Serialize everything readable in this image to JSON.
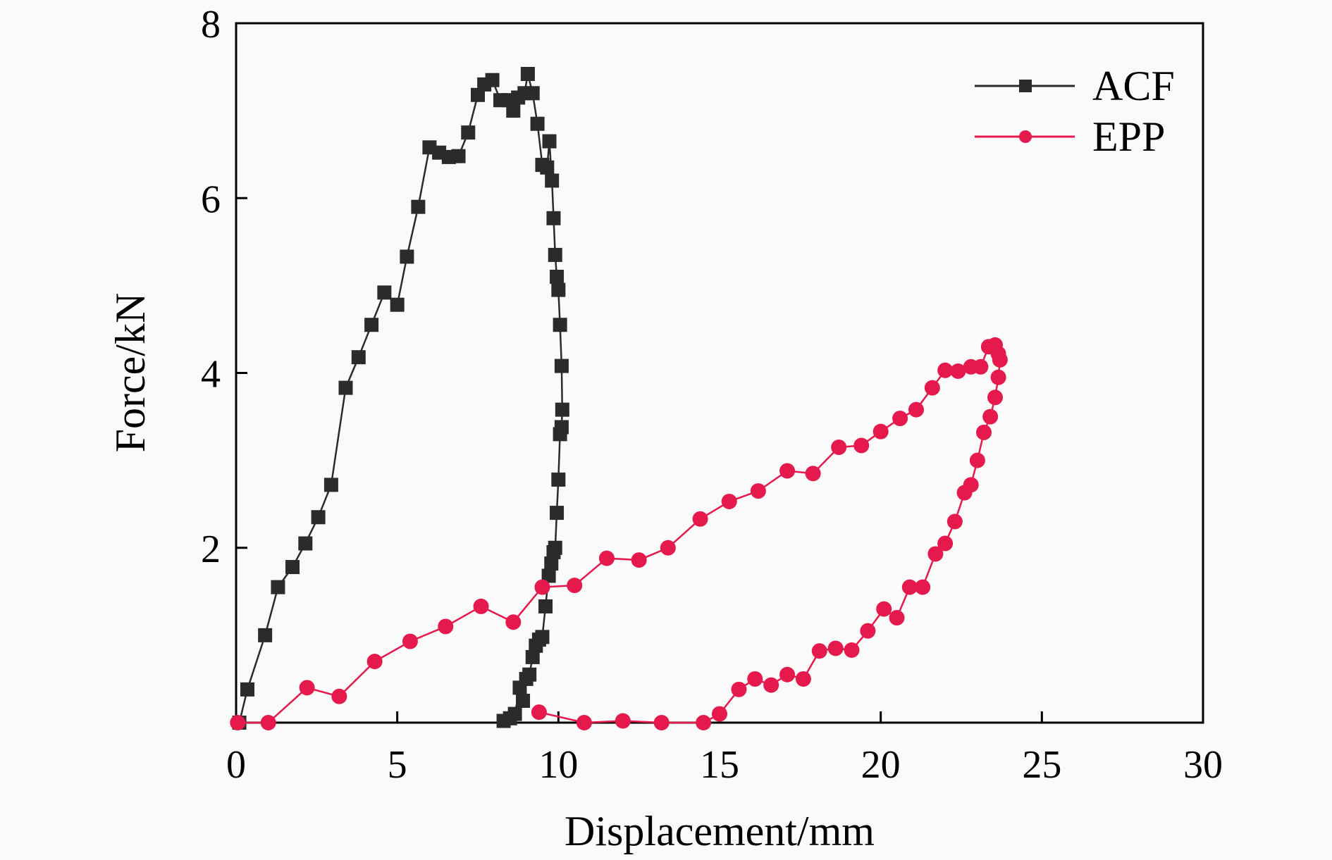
{
  "chart_data": {
    "type": "scatter",
    "title": "",
    "xlabel": "Displacement/mm",
    "ylabel": "Force/kN",
    "xlim": [
      0,
      30
    ],
    "ylim": [
      0,
      8
    ],
    "xticks": [
      0,
      5,
      10,
      15,
      20,
      25,
      30
    ],
    "yticks": [
      2,
      4,
      6,
      8
    ],
    "grid": false,
    "legend_position": "top-right",
    "series": [
      {
        "name": "ACF",
        "color": "#2b2b2b",
        "marker": "square",
        "connected": true,
        "points": [
          [
            0.1,
            0.0
          ],
          [
            0.35,
            0.38
          ],
          [
            0.9,
            1.0
          ],
          [
            1.3,
            1.55
          ],
          [
            1.75,
            1.78
          ],
          [
            2.15,
            2.05
          ],
          [
            2.55,
            2.35
          ],
          [
            2.95,
            2.72
          ],
          [
            3.4,
            3.83
          ],
          [
            3.8,
            4.18
          ],
          [
            4.2,
            4.55
          ],
          [
            4.6,
            4.92
          ],
          [
            5.0,
            4.78
          ],
          [
            5.3,
            5.33
          ],
          [
            5.65,
            5.9
          ],
          [
            6.0,
            6.58
          ],
          [
            6.3,
            6.52
          ],
          [
            6.6,
            6.47
          ],
          [
            6.9,
            6.48
          ],
          [
            7.2,
            6.75
          ],
          [
            7.5,
            7.18
          ],
          [
            7.7,
            7.3
          ],
          [
            7.95,
            7.35
          ],
          [
            8.2,
            7.12
          ],
          [
            8.45,
            7.12
          ],
          [
            8.6,
            7.0
          ],
          [
            8.75,
            7.15
          ],
          [
            8.95,
            7.2
          ],
          [
            9.05,
            7.42
          ],
          [
            9.2,
            7.2
          ],
          [
            9.35,
            6.85
          ],
          [
            9.5,
            6.38
          ],
          [
            9.65,
            6.35
          ],
          [
            9.72,
            6.65
          ],
          [
            9.8,
            6.2
          ],
          [
            9.85,
            5.77
          ],
          [
            9.9,
            5.35
          ],
          [
            9.95,
            5.1
          ],
          [
            10.0,
            4.95
          ],
          [
            10.05,
            4.55
          ],
          [
            10.1,
            4.08
          ],
          [
            10.12,
            3.58
          ],
          [
            10.1,
            3.38
          ],
          [
            10.05,
            3.3
          ],
          [
            10.0,
            2.78
          ],
          [
            9.95,
            2.4
          ],
          [
            9.9,
            2.0
          ],
          [
            9.85,
            1.95
          ],
          [
            9.78,
            1.82
          ],
          [
            9.7,
            1.68
          ],
          [
            9.6,
            1.33
          ],
          [
            9.5,
            0.98
          ],
          [
            9.4,
            0.95
          ],
          [
            9.3,
            0.88
          ],
          [
            9.2,
            0.75
          ],
          [
            9.1,
            0.55
          ],
          [
            9.0,
            0.5
          ],
          [
            8.9,
            0.25
          ],
          [
            8.8,
            0.4
          ],
          [
            8.65,
            0.1
          ],
          [
            8.5,
            0.05
          ],
          [
            8.3,
            0.02
          ]
        ]
      },
      {
        "name": "EPP",
        "color": "#e5194c",
        "marker": "circle",
        "connected": true,
        "points": [
          [
            0.05,
            0.0
          ],
          [
            1.0,
            0.0
          ],
          [
            2.2,
            0.4
          ],
          [
            3.2,
            0.3
          ],
          [
            4.3,
            0.7
          ],
          [
            5.4,
            0.93
          ],
          [
            6.5,
            1.1
          ],
          [
            7.6,
            1.33
          ],
          [
            8.6,
            1.15
          ],
          [
            9.5,
            1.55
          ],
          [
            10.5,
            1.57
          ],
          [
            11.5,
            1.88
          ],
          [
            12.5,
            1.86
          ],
          [
            13.4,
            2.0
          ],
          [
            14.4,
            2.33
          ],
          [
            15.3,
            2.53
          ],
          [
            16.2,
            2.65
          ],
          [
            17.1,
            2.88
          ],
          [
            17.9,
            2.85
          ],
          [
            18.7,
            3.15
          ],
          [
            19.4,
            3.17
          ],
          [
            20.0,
            3.33
          ],
          [
            20.6,
            3.48
          ],
          [
            21.1,
            3.58
          ],
          [
            21.6,
            3.83
          ],
          [
            22.0,
            4.03
          ],
          [
            22.4,
            4.02
          ],
          [
            22.8,
            4.07
          ],
          [
            23.1,
            4.07
          ],
          [
            23.35,
            4.3
          ],
          [
            23.55,
            4.32
          ],
          [
            23.65,
            4.22
          ],
          [
            23.7,
            4.15
          ],
          [
            23.65,
            3.95
          ],
          [
            23.55,
            3.72
          ],
          [
            23.4,
            3.5
          ],
          [
            23.2,
            3.32
          ],
          [
            23.0,
            3.0
          ],
          [
            22.8,
            2.72
          ],
          [
            22.6,
            2.63
          ],
          [
            22.3,
            2.3
          ],
          [
            22.0,
            2.05
          ],
          [
            21.7,
            1.93
          ],
          [
            21.3,
            1.55
          ],
          [
            20.9,
            1.55
          ],
          [
            20.5,
            1.2
          ],
          [
            20.1,
            1.3
          ],
          [
            19.6,
            1.05
          ],
          [
            19.1,
            0.83
          ],
          [
            18.6,
            0.85
          ],
          [
            18.1,
            0.82
          ],
          [
            17.6,
            0.5
          ],
          [
            17.1,
            0.55
          ],
          [
            16.6,
            0.43
          ],
          [
            16.1,
            0.5
          ],
          [
            15.6,
            0.38
          ],
          [
            15.0,
            0.1
          ],
          [
            14.5,
            0.0
          ],
          [
            13.2,
            0.0
          ],
          [
            12.0,
            0.02
          ],
          [
            10.8,
            0.0
          ],
          [
            9.4,
            0.12
          ]
        ]
      }
    ]
  }
}
